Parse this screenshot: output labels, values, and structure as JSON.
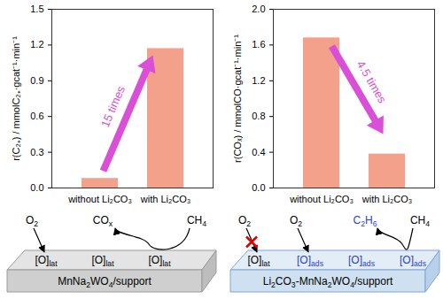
{
  "chart_data": [
    {
      "type": "bar",
      "categories": [
        "without Li₂CO₃",
        "with Li₂CO₃"
      ],
      "values": [
        0.08,
        1.17
      ],
      "color": "#f4a18c",
      "ylabel": "r(C₂₊) / mmolC₂₊·gcat⁻¹·min⁻¹",
      "ylim": [
        0,
        1.5
      ],
      "yticks": [
        {
          "value": 0,
          "label": "0.0"
        },
        0.3,
        0.6,
        0.9,
        1.2,
        1.5
      ],
      "annotations": [
        {
          "text": "15 times"
        }
      ]
    },
    {
      "type": "bar",
      "categories": [
        "without Li₂CO₃",
        "with Li₂CO₃"
      ],
      "values": [
        1.68,
        0.38
      ],
      "color": "#f4a18c",
      "ylabel": "r(COₓ) / mmolCO·gcat⁻¹·min⁻¹",
      "ylim": [
        0,
        2.0
      ],
      "yticks": [
        {
          "value": 0,
          "label": "0.0"
        },
        0.4,
        0.8,
        1.2,
        1.6,
        {
          "value": 2,
          "label": "2.0"
        }
      ],
      "annotations": [
        {
          "text": "4.5 times"
        }
      ]
    }
  ],
  "diagram": {
    "panels": [
      {
        "support": [
          "MnNa",
          "2",
          "WO",
          "4",
          "/support"
        ],
        "sites": [
          {
            "text": [
              "[O]",
              "lat"
            ]
          },
          {
            "text": [
              "[O]",
              "lat"
            ]
          },
          {
            "text": [
              "[O]",
              "lat"
            ]
          }
        ],
        "o2": [
          {
            "text": [
              "O",
              "2"
            ]
          }
        ],
        "reactant": {
          "text": [
            "CH",
            "4"
          ]
        },
        "product": {
          "text": [
            "CO",
            "x"
          ]
        }
      },
      {
        "support": [
          "Li",
          "2",
          "CO",
          "3",
          "-MnNa",
          "2",
          "WO",
          "4",
          "/support"
        ],
        "sites": [
          {
            "text": [
              "[O]",
              "lat"
            ]
          },
          {
            "text": [
              "[O]",
              "ads"
            ],
            "color": "#2a3fc4"
          },
          {
            "text": [
              "[O]",
              "ads"
            ],
            "color": "#2a3fc4"
          },
          {
            "text": [
              "[O]",
              "ads"
            ],
            "color": "#2a3fc4"
          }
        ],
        "o2": [
          {
            "text": [
              "O",
              "2"
            ],
            "blocked": true
          },
          {
            "text": [
              "O",
              "2"
            ]
          }
        ],
        "reactant": {
          "text": [
            "CH",
            "4"
          ]
        },
        "product": {
          "text": [
            "C",
            "2",
            "H",
            "6"
          ],
          "color": "#2a3fc4"
        }
      }
    ]
  }
}
